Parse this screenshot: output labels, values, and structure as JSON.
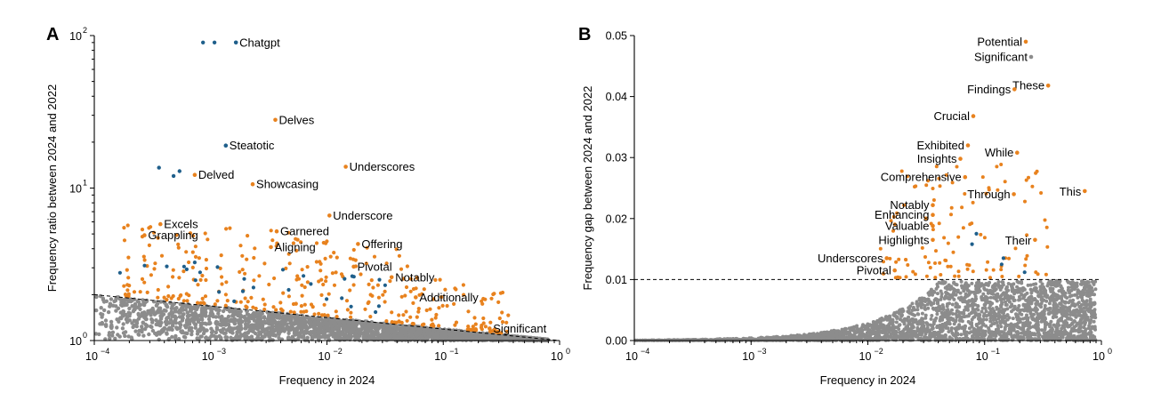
{
  "chart_data": [
    {
      "type": "scatter",
      "panel_label": "A",
      "xlabel": "Frequency in 2024",
      "ylabel": "Frequency ratio between 2024 and 2022",
      "xscale": "log",
      "yscale": "log",
      "xlim": [
        0.0001,
        1
      ],
      "ylim": [
        1,
        100
      ],
      "x_tick_labels": [
        "10",
        "10",
        "10",
        "10",
        "10"
      ],
      "x_tick_exponents": [
        "−4",
        "−3",
        "−2",
        "−1",
        "0"
      ],
      "y_tick_labels": [
        "10",
        "10",
        "10"
      ],
      "y_tick_exponents": [
        "0",
        "1",
        "2"
      ],
      "reference_line": {
        "style": "dashed",
        "points": [
          [
            0.0001,
            2.0
          ],
          [
            1,
            1.0
          ]
        ]
      },
      "colors": {
        "highlight": "#E8821E",
        "special": "#1F5F8B",
        "background": "#8C8C8C"
      },
      "labeled_points": [
        {
          "word": "Chatgpt",
          "x": 0.00165,
          "y": 90,
          "color": "special"
        },
        {
          "word": "Delves",
          "x": 0.0036,
          "y": 28,
          "color": "highlight"
        },
        {
          "word": "Steatotic",
          "x": 0.00135,
          "y": 19,
          "color": "special"
        },
        {
          "word": "Underscores",
          "x": 0.0145,
          "y": 13.8,
          "color": "highlight"
        },
        {
          "word": "Delved",
          "x": 0.00073,
          "y": 12.2,
          "color": "highlight"
        },
        {
          "word": "Showcasing",
          "x": 0.0023,
          "y": 10.6,
          "color": "highlight"
        },
        {
          "word": "Underscore",
          "x": 0.0105,
          "y": 6.6,
          "color": "highlight"
        },
        {
          "word": "Excels",
          "x": 0.00037,
          "y": 5.8,
          "color": "highlight"
        },
        {
          "word": "Garnered",
          "x": 0.0037,
          "y": 5.2,
          "color": "highlight"
        },
        {
          "word": "Grappling",
          "x": 0.00027,
          "y": 4.9,
          "color": "highlight"
        },
        {
          "word": "Offering",
          "x": 0.0185,
          "y": 4.3,
          "color": "highlight"
        },
        {
          "word": "Aligning",
          "x": 0.0033,
          "y": 4.1,
          "color": "highlight"
        },
        {
          "word": "Pivotal",
          "x": 0.017,
          "y": 3.05,
          "color": "highlight"
        },
        {
          "word": "Notably",
          "x": 0.036,
          "y": 2.6,
          "color": "highlight"
        },
        {
          "word": "Additionally",
          "x": 0.058,
          "y": 1.92,
          "color": "highlight"
        },
        {
          "word": "Significant",
          "x": 0.25,
          "y": 1.2,
          "color": "highlight"
        }
      ],
      "unlabeled_special_points": [
        [
          0.00086,
          90
        ],
        [
          0.00108,
          90
        ],
        [
          0.00036,
          13.6
        ],
        [
          0.00048,
          12.0
        ],
        [
          0.00054,
          12.9
        ]
      ]
    },
    {
      "type": "scatter",
      "panel_label": "B",
      "xlabel": "Frequency in 2024",
      "ylabel": "Frequency gap between 2024 and 2022",
      "xscale": "log",
      "yscale": "linear",
      "xlim": [
        0.0001,
        1
      ],
      "ylim": [
        0,
        0.05
      ],
      "x_tick_labels": [
        "10",
        "10",
        "10",
        "10",
        "10"
      ],
      "x_tick_exponents": [
        "−4",
        "−3",
        "−2",
        "−1",
        "0"
      ],
      "y_tick_labels": [
        "0.00",
        "0.01",
        "0.02",
        "0.03",
        "0.04",
        "0.05"
      ],
      "y_ticks": [
        0,
        0.01,
        0.02,
        0.03,
        0.04,
        0.05
      ],
      "reference_line": {
        "style": "dashed",
        "y": 0.01
      },
      "labeled_points": [
        {
          "word": "Potential",
          "x": 0.225,
          "y": 0.049,
          "color": "highlight"
        },
        {
          "word": "Significant",
          "x": 0.25,
          "y": 0.0465,
          "color": "background"
        },
        {
          "word": "These",
          "x": 0.35,
          "y": 0.0418,
          "color": "highlight"
        },
        {
          "word": "Findings",
          "x": 0.18,
          "y": 0.0412,
          "color": "highlight"
        },
        {
          "word": "Crucial",
          "x": 0.08,
          "y": 0.0368,
          "color": "highlight"
        },
        {
          "word": "Exhibited",
          "x": 0.072,
          "y": 0.032,
          "color": "highlight"
        },
        {
          "word": "While",
          "x": 0.19,
          "y": 0.0308,
          "color": "highlight"
        },
        {
          "word": "Insights",
          "x": 0.062,
          "y": 0.0298,
          "color": "highlight"
        },
        {
          "word": "Comprehensive",
          "x": 0.068,
          "y": 0.0268,
          "color": "highlight"
        },
        {
          "word": "This",
          "x": 0.72,
          "y": 0.0245,
          "color": "highlight"
        },
        {
          "word": "Through",
          "x": 0.178,
          "y": 0.024,
          "color": "highlight"
        },
        {
          "word": "Notably",
          "x": 0.036,
          "y": 0.0222,
          "color": "highlight"
        },
        {
          "word": "Enhancing",
          "x": 0.036,
          "y": 0.0206,
          "color": "highlight"
        },
        {
          "word": "Valuable",
          "x": 0.036,
          "y": 0.0188,
          "color": "highlight"
        },
        {
          "word": "Highlights",
          "x": 0.036,
          "y": 0.0165,
          "color": "highlight"
        },
        {
          "word": "Their",
          "x": 0.27,
          "y": 0.0165,
          "color": "highlight"
        },
        {
          "word": "Underscores",
          "x": 0.0145,
          "y": 0.0135,
          "color": "highlight"
        },
        {
          "word": "Pivotal",
          "x": 0.017,
          "y": 0.0115,
          "color": "highlight"
        }
      ]
    }
  ]
}
